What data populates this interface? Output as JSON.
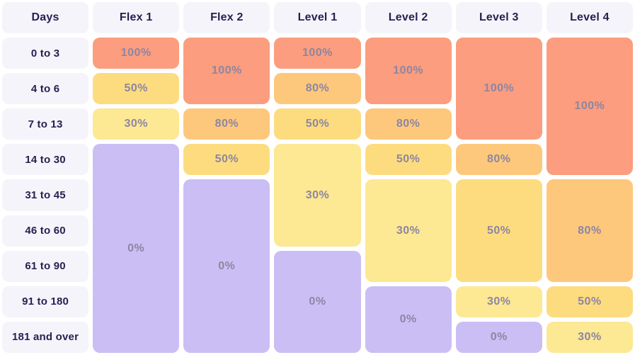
{
  "table": {
    "day_column_header": "Days",
    "day_rows": [
      "0 to 3",
      "4 to 6",
      "7 to 13",
      "14 to 30",
      "31 to 45",
      "46 to 60",
      "61 to 90",
      "91 to 180",
      "181 and over"
    ],
    "plans": [
      {
        "label": "Flex 1",
        "blocks": [
          {
            "value": "100%",
            "span": 1
          },
          {
            "value": "50%",
            "span": 1
          },
          {
            "value": "30%",
            "span": 1
          },
          {
            "value": "0%",
            "span": 6
          }
        ]
      },
      {
        "label": "Flex 2",
        "blocks": [
          {
            "value": "100%",
            "span": 2
          },
          {
            "value": "80%",
            "span": 1
          },
          {
            "value": "50%",
            "span": 1
          },
          {
            "value": "0%",
            "span": 5
          }
        ]
      },
      {
        "label": "Level 1",
        "blocks": [
          {
            "value": "100%",
            "span": 1
          },
          {
            "value": "80%",
            "span": 1
          },
          {
            "value": "50%",
            "span": 1
          },
          {
            "value": "30%",
            "span": 3
          },
          {
            "value": "0%",
            "span": 3
          }
        ]
      },
      {
        "label": "Level 2",
        "blocks": [
          {
            "value": "100%",
            "span": 2
          },
          {
            "value": "80%",
            "span": 1
          },
          {
            "value": "50%",
            "span": 1
          },
          {
            "value": "30%",
            "span": 3
          },
          {
            "value": "0%",
            "span": 2
          }
        ]
      },
      {
        "label": "Level 3",
        "blocks": [
          {
            "value": "100%",
            "span": 3
          },
          {
            "value": "80%",
            "span": 1
          },
          {
            "value": "50%",
            "span": 3
          },
          {
            "value": "30%",
            "span": 1
          },
          {
            "value": "0%",
            "span": 1
          }
        ]
      },
      {
        "label": "Level 4",
        "blocks": [
          {
            "value": "100%",
            "span": 4
          },
          {
            "value": "80%",
            "span": 3
          },
          {
            "value": "50%",
            "span": 1
          },
          {
            "value": "30%",
            "span": 1
          }
        ]
      }
    ],
    "value_colors": {
      "100%": "#fb9d7e",
      "80%": "#fdc87c",
      "50%": "#fddc80",
      "30%": "#fde893",
      "0%": "#cbbef5"
    },
    "header_bg": "#f5f4fb",
    "header_text_color": "#262150",
    "fee_text_color": "#8d86a2"
  },
  "chart_data": {
    "type": "heatmap",
    "title": "Cancellation fee percentage by days before arrival and policy level",
    "rows": [
      "0 to 3",
      "4 to 6",
      "7 to 13",
      "14 to 30",
      "31 to 45",
      "46 to 60",
      "61 to 90",
      "91 to 180",
      "181 and over"
    ],
    "columns": [
      "Flex 1",
      "Flex 2",
      "Level 1",
      "Level 2",
      "Level 3",
      "Level 4"
    ],
    "unit": "%",
    "values": [
      [
        100,
        100,
        100,
        100,
        100,
        100
      ],
      [
        50,
        100,
        80,
        100,
        100,
        100
      ],
      [
        30,
        80,
        50,
        80,
        100,
        100
      ],
      [
        0,
        50,
        30,
        50,
        80,
        100
      ],
      [
        0,
        0,
        30,
        30,
        50,
        80
      ],
      [
        0,
        0,
        30,
        30,
        50,
        80
      ],
      [
        0,
        0,
        0,
        30,
        50,
        80
      ],
      [
        0,
        0,
        0,
        0,
        30,
        50
      ],
      [
        0,
        0,
        0,
        0,
        0,
        30
      ]
    ],
    "color_scale": {
      "100": "#fb9d7e",
      "80": "#fdc87c",
      "50": "#fddc80",
      "30": "#fde893",
      "0": "#cbbef5"
    },
    "legend_position": "none",
    "grid": false
  }
}
